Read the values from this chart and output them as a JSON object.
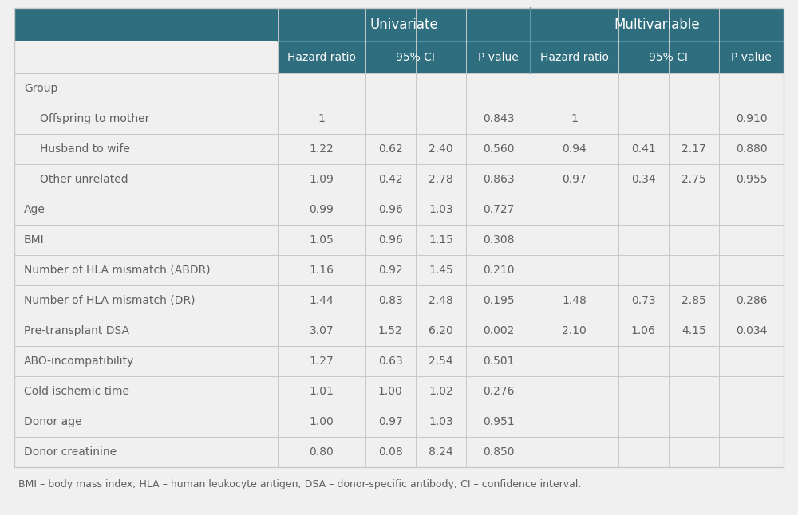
{
  "header_bg": "#2e6e7e",
  "header_text": "#ffffff",
  "body_bg": "#f0f0f0",
  "line_color": "#c8c8c8",
  "text_color": "#606060",
  "footnote": "BMI – body mass index; HLA – human leukocyte antigen; DSA – donor-specific antibody; CI – confidence interval.",
  "univariate_label": "Univariate",
  "multivariable_label": "Multivariable",
  "sub_headers": [
    "Hazard ratio",
    "95% CI",
    "",
    "P value",
    "Hazard ratio",
    "95% CI",
    "",
    "P value"
  ],
  "rows": [
    {
      "label": "Group",
      "indent": 0,
      "bold": false,
      "data": [
        "",
        "",
        "",
        "",
        "",
        "",
        "",
        ""
      ]
    },
    {
      "label": "Offspring to mother",
      "indent": 1,
      "bold": false,
      "data": [
        "1",
        "",
        "",
        "0.843",
        "1",
        "",
        "",
        "0.910"
      ]
    },
    {
      "label": "Husband to wife",
      "indent": 1,
      "bold": false,
      "data": [
        "1.22",
        "0.62",
        "2.40",
        "0.560",
        "0.94",
        "0.41",
        "2.17",
        "0.880"
      ]
    },
    {
      "label": "Other unrelated",
      "indent": 1,
      "bold": false,
      "data": [
        "1.09",
        "0.42",
        "2.78",
        "0.863",
        "0.97",
        "0.34",
        "2.75",
        "0.955"
      ]
    },
    {
      "label": "Age",
      "indent": 0,
      "bold": false,
      "data": [
        "0.99",
        "0.96",
        "1.03",
        "0.727",
        "",
        "",
        "",
        ""
      ]
    },
    {
      "label": "BMI",
      "indent": 0,
      "bold": false,
      "data": [
        "1.05",
        "0.96",
        "1.15",
        "0.308",
        "",
        "",
        "",
        ""
      ]
    },
    {
      "label": "Number of HLA mismatch (ABDR)",
      "indent": 0,
      "bold": false,
      "data": [
        "1.16",
        "0.92",
        "1.45",
        "0.210",
        "",
        "",
        "",
        ""
      ]
    },
    {
      "label": "Number of HLA mismatch (DR)",
      "indent": 0,
      "bold": false,
      "data": [
        "1.44",
        "0.83",
        "2.48",
        "0.195",
        "1.48",
        "0.73",
        "2.85",
        "0.286"
      ]
    },
    {
      "label": "Pre-transplant DSA",
      "indent": 0,
      "bold": false,
      "data": [
        "3.07",
        "1.52",
        "6.20",
        "0.002",
        "2.10",
        "1.06",
        "4.15",
        "0.034"
      ]
    },
    {
      "label": "ABO-incompatibility",
      "indent": 0,
      "bold": false,
      "data": [
        "1.27",
        "0.63",
        "2.54",
        "0.501",
        "",
        "",
        "",
        ""
      ]
    },
    {
      "label": "Cold ischemic time",
      "indent": 0,
      "bold": false,
      "data": [
        "1.01",
        "1.00",
        "1.02",
        "0.276",
        "",
        "",
        "",
        ""
      ]
    },
    {
      "label": "Donor age",
      "indent": 0,
      "bold": false,
      "data": [
        "1.00",
        "0.97",
        "1.03",
        "0.951",
        "",
        "",
        "",
        ""
      ]
    },
    {
      "label": "Donor creatinine",
      "indent": 0,
      "bold": false,
      "data": [
        "0.80",
        "0.08",
        "8.24",
        "0.850",
        "",
        "",
        "",
        ""
      ]
    }
  ]
}
